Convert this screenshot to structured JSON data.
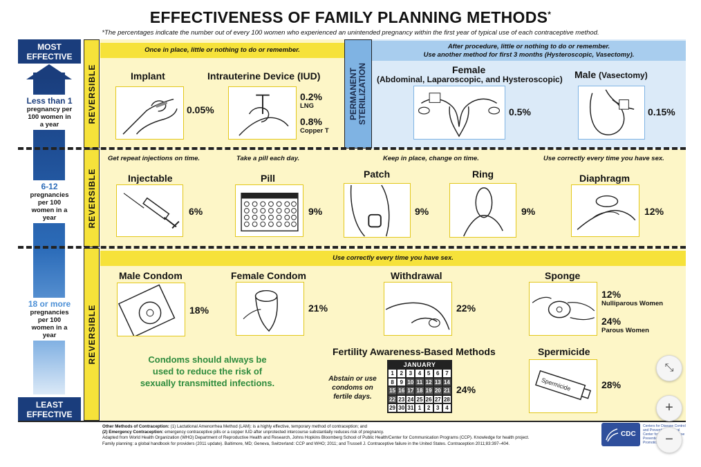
{
  "title": "EFFECTIVENESS OF FAMILY PLANNING METHODS",
  "title_mark": "*",
  "subtitle": "*The percentages indicate the number out of every 100 women who experienced an unintended pregnancy within the first year of typical use of each contraceptive method.",
  "scale": {
    "top": "MOST EFFECTIVE",
    "bottom": "LEAST EFFECTIVE",
    "tiers": [
      {
        "big": "Less than 1",
        "small": "pregnancy per 100 women in a year"
      },
      {
        "big": "6-12",
        "small": "pregnancies per 100 women in a year"
      },
      {
        "big": "18 or more",
        "small": "pregnancies per 100 women in a year"
      }
    ]
  },
  "side_label": "REVERSIBLE",
  "permanent_label_line1": "PERMANENT",
  "permanent_label_line2": "STERILIZATION",
  "row1": {
    "hint": "Once in place, little or nothing to do or remember.",
    "implant": {
      "name": "Implant",
      "pct": "0.05%"
    },
    "iud": {
      "name": "Intrauterine Device (IUD)",
      "pct1": "0.2%",
      "sub1": "LNG",
      "pct2": "0.8%",
      "sub2": "Copper T"
    },
    "sterilization_hint_line1": "After procedure, little or nothing to do or remember.",
    "sterilization_hint_line2": "Use another method for first 3 months (Hysteroscopic, Vasectomy).",
    "female": {
      "name": "Female",
      "detail": "(Abdominal, Laparoscopic, and Hysteroscopic)",
      "pct": "0.5%"
    },
    "male": {
      "name": "Male",
      "detail": "(Vasectomy)",
      "pct": "0.15%"
    }
  },
  "row2": {
    "hints": [
      "Get repeat injections on time.",
      "Take a pill each day.",
      "Keep in place, change on time.",
      "Use correctly every time you have sex."
    ],
    "methods": [
      {
        "name": "Injectable",
        "pct": "6%"
      },
      {
        "name": "Pill",
        "pct": "9%"
      },
      {
        "name": "Patch",
        "pct": "9%"
      },
      {
        "name": "Ring",
        "pct": "9%"
      },
      {
        "name": "Diaphragm",
        "pct": "12%"
      }
    ]
  },
  "row3": {
    "hint": "Use correctly every time you have sex.",
    "male_condom": {
      "name": "Male Condom",
      "pct": "18%"
    },
    "female_condom": {
      "name": "Female Condom",
      "pct": "21%"
    },
    "withdrawal": {
      "name": "Withdrawal",
      "pct": "22%"
    },
    "sponge": {
      "name": "Sponge",
      "pct1": "12%",
      "sub1": "Nulliparous Women",
      "pct2": "24%",
      "sub2": "Parous Women"
    },
    "fabm": {
      "name": "Fertility Awareness-Based Methods",
      "pct": "24%",
      "note": "Abstain or use condoms on fertile days."
    },
    "spermicide": {
      "name": "Spermicide",
      "pct": "28%",
      "tube_label": "Spermicide"
    },
    "condom_message": "Condoms should always be used to reduce the risk of sexually transmitted infections."
  },
  "calendar": {
    "month": "JANUARY",
    "days": [
      "1",
      "2",
      "3",
      "4",
      "5",
      "6",
      "7",
      "8",
      "9",
      "10",
      "11",
      "12",
      "13",
      "14",
      "15",
      "16",
      "17",
      "18",
      "19",
      "20",
      "21",
      "22",
      "23",
      "24",
      "25",
      "26",
      "27",
      "28",
      "29",
      "30",
      "31",
      "1",
      "2",
      "3",
      "4"
    ]
  },
  "footer": {
    "line1_bold": "Other Methods of Contraception:",
    "line1": " (1) Lactational Amenorrhea Method (LAM): is a highly effective, temporary method of contraception; and",
    "line2_bold": "(2) Emergency Contraception:",
    "line2": " emergency contraceptive pills or a copper IUD after unprotected intercourse substantially reduces risk of pregnancy.",
    "line3": "Adapted from World Health Organization (WHO) Department of Reproductive Health and Research, Johns Hopkins Bloomberg School of Public Health/Center for Communication Programs (CCP). Knowledge for health project.",
    "line4": "Family planning: a global handbook for providers (2011 update). Baltimore, MD; Geneva, Switzerland: CCP and WHO; 2011; and Trussell J. Contraceptive failure in the United States. Contraception 2011;83:397–404."
  },
  "cdc": {
    "logo": "CDC",
    "text": "Centers for Disease Control and Prevention National Center for Chronic Disease Prevention and Health Promotion"
  },
  "controls": {
    "collapse": "⤡",
    "zoom_in": "+",
    "zoom_out": "−"
  },
  "colors": {
    "navy": "#1a3d7c",
    "yellow": "#f6e23a",
    "cream": "#fdf6c7",
    "light_blue": "#dbeaf8",
    "green": "#2e8b3d"
  }
}
